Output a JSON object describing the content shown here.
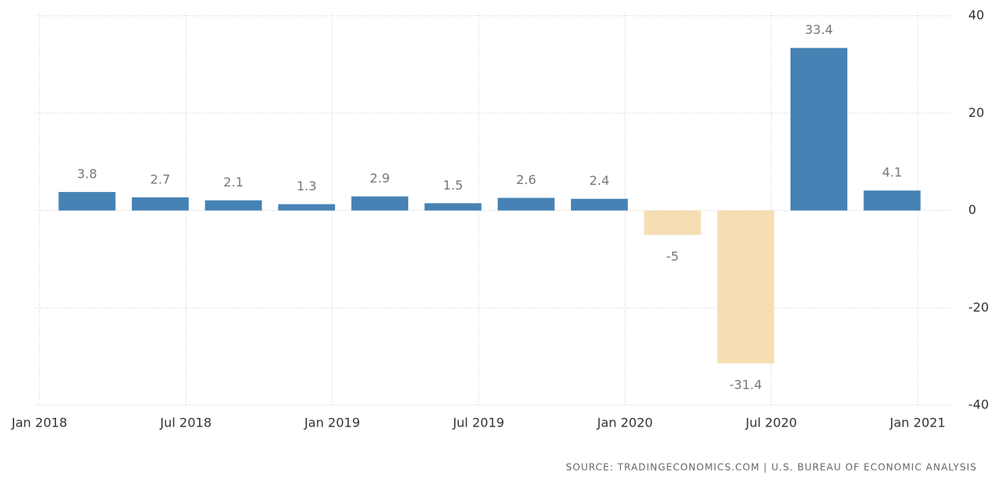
{
  "chart_data": {
    "type": "bar",
    "categories": [
      null,
      null,
      null,
      null,
      null,
      null,
      null,
      null,
      null,
      null,
      null,
      null
    ],
    "values": [
      3.8,
      2.7,
      2.1,
      1.3,
      2.9,
      1.5,
      2.6,
      2.4,
      -5,
      -31.4,
      33.4,
      4.1
    ],
    "color": "#4682b4",
    "negative_color": "#f5deb3",
    "xticks": [
      "Jan 2018",
      "Jul 2018",
      "Jan 2019",
      "Jul 2019",
      "Jan 2020",
      "Jul 2020",
      "Jan 2021"
    ],
    "ylim": [
      -40,
      40
    ],
    "yticks": [
      -40,
      -20,
      0,
      20,
      40
    ],
    "grid": true,
    "source": "SOURCE: TRADINGECONOMICS.COM | U.S. BUREAU OF ECONOMIC ANALYSIS"
  }
}
